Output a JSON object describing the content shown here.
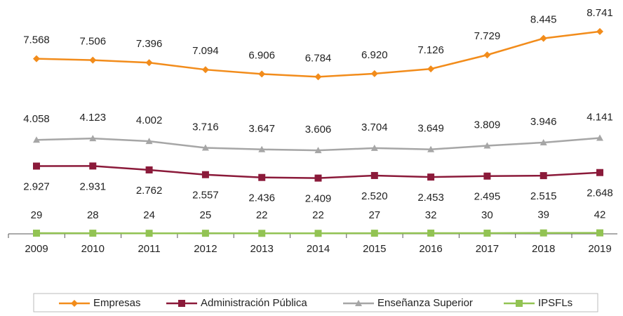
{
  "chart_data": {
    "type": "line",
    "categories": [
      "2009",
      "2010",
      "2011",
      "2012",
      "2013",
      "2014",
      "2015",
      "2016",
      "2017",
      "2018",
      "2019"
    ],
    "series": [
      {
        "name": "Empresas",
        "color": "#f28c1b",
        "values": [
          7568,
          7506,
          7396,
          7094,
          6906,
          6784,
          6920,
          7126,
          7729,
          8445,
          8741
        ],
        "value_labels": [
          "7.568",
          "7.506",
          "7.396",
          "7.094",
          "6.906",
          "6.784",
          "6.920",
          "7.126",
          "7.729",
          "8.445",
          "8.741"
        ]
      },
      {
        "name": "Administración Pública",
        "color": "#8b1a3a",
        "values": [
          2927,
          2931,
          2762,
          2557,
          2436,
          2409,
          2520,
          2453,
          2495,
          2515,
          2648
        ],
        "value_labels": [
          "2.927",
          "2.931",
          "2.762",
          "2.557",
          "2.436",
          "2.409",
          "2.520",
          "2.453",
          "2.495",
          "2.515",
          "2.648"
        ]
      },
      {
        "name": "Enseñanza Superior",
        "color": "#a6a6a6",
        "values": [
          4058,
          4123,
          4002,
          3716,
          3647,
          3606,
          3704,
          3649,
          3809,
          3946,
          4141
        ],
        "value_labels": [
          "4.058",
          "4.123",
          "4.002",
          "3.716",
          "3.647",
          "3.606",
          "3.704",
          "3.649",
          "3.809",
          "3.946",
          "4.141"
        ]
      },
      {
        "name": "IPSFLs",
        "color": "#92c353",
        "values": [
          29,
          28,
          24,
          25,
          22,
          22,
          27,
          32,
          30,
          39,
          42
        ]
      }
    ],
    "ylim": [
      0,
      9800
    ]
  }
}
